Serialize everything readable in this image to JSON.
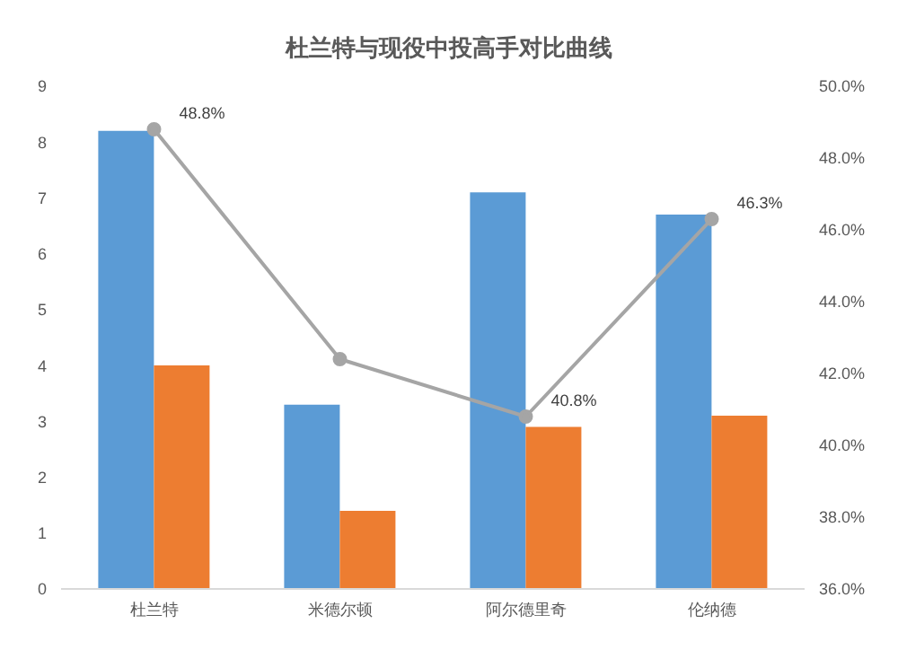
{
  "chart_data": {
    "type": "bar",
    "title": "杜兰特与现役中投高手对比曲线",
    "categories": [
      "杜兰特",
      "米德尔顿",
      "阿尔德里奇",
      "伦纳德"
    ],
    "series": [
      {
        "color": "#5b9bd5",
        "values": [
          8.2,
          3.3,
          7.1,
          6.7
        ]
      },
      {
        "color": "#ed7d31",
        "values": [
          4.0,
          1.4,
          2.9,
          3.1
        ]
      },
      {
        "type": "line",
        "axis": "y2",
        "color": "#a5a5a5",
        "marker": "circle",
        "values": [
          48.8,
          42.4,
          40.8,
          46.3
        ],
        "value_labels": [
          "48.8%",
          null,
          "40.8%",
          "46.3%"
        ]
      }
    ],
    "ylim": [
      0,
      9
    ],
    "yticks": [
      0,
      1,
      2,
      3,
      4,
      5,
      6,
      7,
      8,
      9
    ],
    "y2lim": [
      36,
      50
    ],
    "y2ticks": [
      {
        "value": 36,
        "label": "36.0%"
      },
      {
        "value": 38,
        "label": "38.0%"
      },
      {
        "value": 40,
        "label": "40.0%"
      },
      {
        "value": 42,
        "label": "42.0%"
      },
      {
        "value": 44,
        "label": "44.0%"
      },
      {
        "value": 46,
        "label": "46.0%"
      },
      {
        "value": 48,
        "label": "48.0%"
      },
      {
        "value": 50,
        "label": "50.0%"
      }
    ],
    "grid": false,
    "legend": false
  }
}
